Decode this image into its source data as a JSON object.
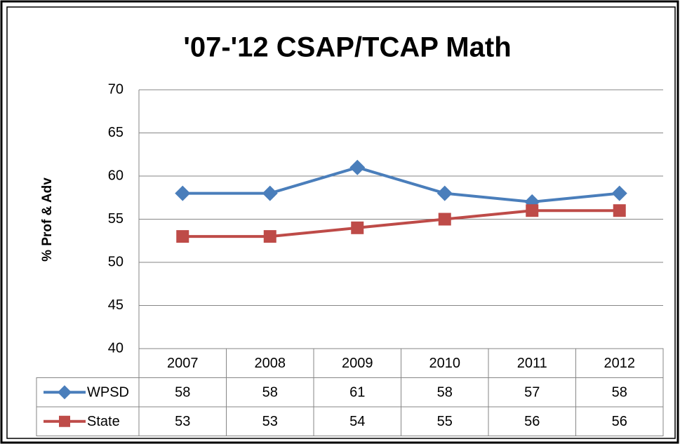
{
  "chart_data": {
    "type": "line",
    "title": "'07-'12 CSAP/TCAP Math",
    "y_label": "% Prof & Adv",
    "categories": [
      "2007",
      "2008",
      "2009",
      "2010",
      "2011",
      "2012"
    ],
    "series": [
      {
        "name": "WPSD",
        "color": "#4a7ebb",
        "marker": "diamond",
        "values": [
          58,
          58,
          61,
          58,
          57,
          58
        ]
      },
      {
        "name": "State",
        "color": "#be4b48",
        "marker": "square",
        "values": [
          53,
          53,
          54,
          55,
          56,
          56
        ]
      }
    ],
    "ylim": [
      40,
      70
    ],
    "yticks": [
      40,
      45,
      50,
      55,
      60,
      65,
      70
    ],
    "grid": true,
    "data_table": true
  }
}
